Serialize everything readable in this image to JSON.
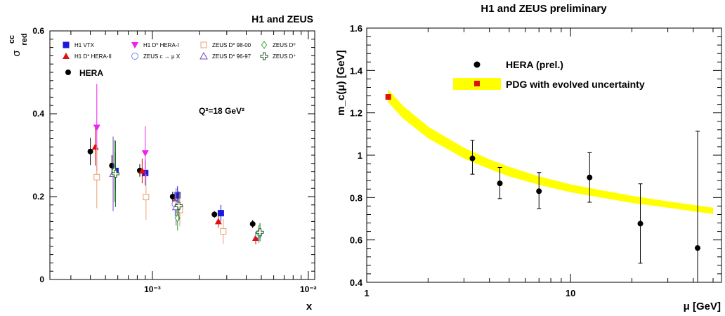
{
  "colors": {
    "h1_vtx": "#1a1adb",
    "h1_dstar_hera2": "#e01010",
    "h1_dstar_hera1": "#ee22ee",
    "zeus_dstar_98_00": "#e8a070",
    "zeus_c_to_mu": "#6688dd",
    "zeus_dstar_96_97": "#7744bb",
    "zeus_d0": "#33aa33",
    "zeus_dplus": "#225522",
    "hera": "#000000",
    "band": "#ffff00",
    "pdg": "#e01010"
  },
  "chart_data": [
    {
      "type": "scatter",
      "title": "H1 and ZEUS",
      "ylabel_main": "σ",
      "ylabel_sup": "cc",
      "ylabel_sub": "red",
      "xlabel": "x",
      "annotation": "Q²=18 GeV²",
      "x_log": true,
      "xlim": [
        0.00022,
        0.011
      ],
      "ylim": [
        0,
        0.6
      ],
      "y_ticks": [
        0,
        0.2,
        0.4,
        0.6
      ],
      "y_tick_labels": [
        "0",
        "0.2",
        "0.4",
        "0.6"
      ],
      "x_ticks": [
        0.001,
        0.01
      ],
      "x_tick_labels": [
        "10⁻³",
        "10⁻²"
      ],
      "legend": [
        {
          "label": "H1 VTX",
          "key": "h1_vtx"
        },
        {
          "label": "H1 D* HERA-II",
          "key": "h1_dstar_hera2"
        },
        {
          "label": "H1 D* HERA-I",
          "key": "h1_dstar_hera1"
        },
        {
          "label": "ZEUS c → μ X",
          "key": "zeus_c_to_mu"
        },
        {
          "label": "ZEUS D* 98-00",
          "key": "zeus_dstar_98_00"
        },
        {
          "label": "ZEUS D* 96-97",
          "key": "zeus_dstar_96_97"
        },
        {
          "label": "ZEUS D⁰",
          "key": "zeus_d0"
        },
        {
          "label": "ZEUS D⁺",
          "key": "zeus_dplus"
        },
        {
          "label": "HERA",
          "key": "hera"
        }
      ],
      "series": [
        {
          "key": "hera",
          "marker": "circle",
          "points": [
            {
              "x": 0.0004,
              "y": 0.309,
              "err": 0.033
            },
            {
              "x": 0.00055,
              "y": 0.275,
              "err": 0.025
            },
            {
              "x": 0.00083,
              "y": 0.263,
              "err": 0.015
            },
            {
              "x": 0.00135,
              "y": 0.2,
              "err": 0.012
            },
            {
              "x": 0.0025,
              "y": 0.157,
              "err": 0.008
            },
            {
              "x": 0.0044,
              "y": 0.134,
              "err": 0.01
            }
          ]
        },
        {
          "key": "h1_vtx",
          "marker": "square",
          "points": [
            {
              "x": 0.00058,
              "y": 0.262,
              "err": 0.045
            },
            {
              "x": 0.0009,
              "y": 0.257,
              "err": 0.03
            },
            {
              "x": 0.00145,
              "y": 0.203,
              "err": 0.022
            },
            {
              "x": 0.00275,
              "y": 0.16,
              "err": 0.02
            }
          ]
        },
        {
          "key": "h1_dstar_hera2",
          "marker": "triangle-up",
          "points": [
            {
              "x": 0.00043,
              "y": 0.32,
              "err": 0.045
            },
            {
              "x": 0.00086,
              "y": 0.262,
              "err": 0.03
            },
            {
              "x": 0.0014,
              "y": 0.19,
              "err": 0.02
            },
            {
              "x": 0.00265,
              "y": 0.14,
              "err": 0.015
            },
            {
              "x": 0.0046,
              "y": 0.1,
              "err": 0.015
            }
          ]
        },
        {
          "key": "h1_dstar_hera1",
          "marker": "triangle-down",
          "points": [
            {
              "x": 0.00044,
              "y": 0.367,
              "err": 0.105
            },
            {
              "x": 0.0009,
              "y": 0.305,
              "err": 0.065
            }
          ]
        },
        {
          "key": "zeus_dstar_98_00",
          "marker": "open-square",
          "points": [
            {
              "x": 0.00044,
              "y": 0.247,
              "err": 0.075
            },
            {
              "x": 0.00091,
              "y": 0.199,
              "err": 0.055
            },
            {
              "x": 0.0015,
              "y": 0.168,
              "err": 0.04
            },
            {
              "x": 0.00285,
              "y": 0.116,
              "err": 0.03
            }
          ]
        },
        {
          "key": "zeus_c_to_mu",
          "marker": "open-circle",
          "points": [
            {
              "x": 0.0014,
              "y": 0.182,
              "err": 0.03
            },
            {
              "x": 0.0048,
              "y": 0.108,
              "err": 0.02
            }
          ]
        },
        {
          "key": "zeus_dstar_96_97",
          "marker": "open-triangle",
          "points": [
            {
              "x": 0.00056,
              "y": 0.255,
              "err": 0.09
            },
            {
              "x": 0.00142,
              "y": 0.175,
              "err": 0.045
            }
          ]
        },
        {
          "key": "zeus_d0",
          "marker": "open-diamond",
          "points": [
            {
              "x": 0.00057,
              "y": 0.262,
              "err": 0.075
            },
            {
              "x": 0.00145,
              "y": 0.148,
              "err": 0.03
            },
            {
              "x": 0.0048,
              "y": 0.112,
              "err": 0.02
            }
          ]
        },
        {
          "key": "zeus_dplus",
          "marker": "open-cross",
          "points": [
            {
              "x": 0.00058,
              "y": 0.255,
              "err": 0.08
            },
            {
              "x": 0.00148,
              "y": 0.178,
              "err": 0.035
            },
            {
              "x": 0.0049,
              "y": 0.114,
              "err": 0.022
            }
          ]
        }
      ]
    },
    {
      "type": "scatter",
      "title": "H1 and ZEUS preliminary",
      "ylabel": "m_c(μ) [GeV]",
      "xlabel": "μ [GeV]",
      "x_log": true,
      "xlim": [
        1,
        55
      ],
      "ylim": [
        0.4,
        1.6
      ],
      "y_ticks": [
        0.4,
        0.6,
        0.8,
        1.0,
        1.2,
        1.4,
        1.6
      ],
      "y_tick_labels": [
        "0.4",
        "0.6",
        "0.8",
        "1",
        "1.2",
        "1.4",
        "1.6"
      ],
      "x_ticks": [
        1,
        10
      ],
      "x_tick_labels": [
        "1",
        "10"
      ],
      "legend": [
        {
          "label": "HERA (prel.)",
          "key": "hera"
        },
        {
          "label": "PDG with evolved uncertainty",
          "key": "pdg"
        }
      ],
      "band": [
        {
          "x": 1.275,
          "low": 1.25,
          "high": 1.31
        },
        {
          "x": 1.5,
          "low": 1.175,
          "high": 1.235
        },
        {
          "x": 2,
          "low": 1.08,
          "high": 1.135
        },
        {
          "x": 3,
          "low": 0.985,
          "high": 1.035
        },
        {
          "x": 4,
          "low": 0.935,
          "high": 0.98
        },
        {
          "x": 5,
          "low": 0.9,
          "high": 0.945
        },
        {
          "x": 7,
          "low": 0.86,
          "high": 0.9
        },
        {
          "x": 10,
          "low": 0.825,
          "high": 0.862
        },
        {
          "x": 15,
          "low": 0.795,
          "high": 0.83
        },
        {
          "x": 20,
          "low": 0.775,
          "high": 0.808
        },
        {
          "x": 30,
          "low": 0.752,
          "high": 0.782
        },
        {
          "x": 40,
          "low": 0.735,
          "high": 0.765
        },
        {
          "x": 50,
          "low": 0.722,
          "high": 0.752
        }
      ],
      "pdg_point": {
        "x": 1.275,
        "y": 1.275
      },
      "hera_points": [
        {
          "x": 3.3,
          "y": 0.985,
          "lo": 0.91,
          "hi": 1.07
        },
        {
          "x": 4.5,
          "y": 0.867,
          "lo": 0.795,
          "hi": 0.942
        },
        {
          "x": 7.0,
          "y": 0.83,
          "lo": 0.748,
          "hi": 0.918
        },
        {
          "x": 12.4,
          "y": 0.895,
          "lo": 0.778,
          "hi": 1.012
        },
        {
          "x": 22.0,
          "y": 0.677,
          "lo": 0.49,
          "hi": 0.865
        },
        {
          "x": 42.0,
          "y": 0.562,
          "lo": 0.0,
          "hi": 1.113
        }
      ]
    }
  ]
}
